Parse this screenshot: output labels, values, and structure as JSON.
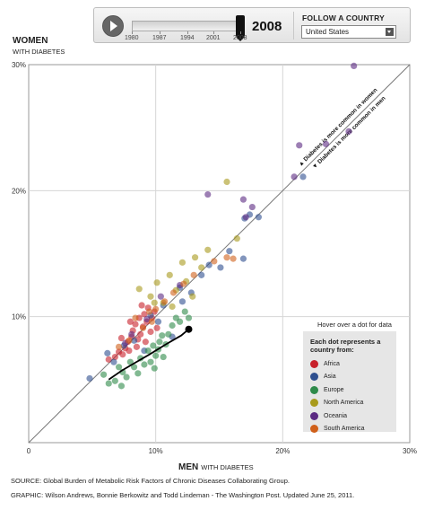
{
  "controls": {
    "play_label": "play",
    "years": [
      "1980",
      "1987",
      "1994",
      "2001",
      "2008"
    ],
    "current_year": "2008",
    "follow_label": "FOLLOW A COUNTRY",
    "selected_country": "United States"
  },
  "axes": {
    "y_title": "WOMEN",
    "y_subtitle": "WITH DIABETES",
    "x_title": "MEN",
    "x_subtitle": "WITH DIABETES"
  },
  "hover_hint": "Hover over a dot for data",
  "legend": {
    "title": "Each dot represents a country from:",
    "items": [
      {
        "label": "Africa",
        "color": "#c8202a"
      },
      {
        "label": "Asia",
        "color": "#2e4f8f"
      },
      {
        "label": "Europe",
        "color": "#2e8a4a"
      },
      {
        "label": "North America",
        "color": "#a89a1c"
      },
      {
        "label": "Oceania",
        "color": "#5b2a82"
      },
      {
        "label": "South America",
        "color": "#d0601a"
      }
    ]
  },
  "chart_data": {
    "type": "scatter",
    "title": "",
    "xlabel": "MEN WITH DIABETES",
    "ylabel": "WOMEN WITH DIABETES",
    "xlim": [
      0,
      30
    ],
    "ylim": [
      0,
      30
    ],
    "x_ticks": [
      "0",
      "10%",
      "20%",
      "30%"
    ],
    "y_ticks": [
      "10%",
      "20%",
      "30%"
    ],
    "grid": true,
    "reference_line": "y = x",
    "diagonal_labels": [
      "▲ Diabetes is more common in women",
      "▼ Diabetes is more common in men"
    ],
    "highlighted_country": {
      "name": "United States",
      "trajectory": [
        [
          6.3,
          5.0
        ],
        [
          7.3,
          5.7
        ],
        [
          8.3,
          6.3
        ],
        [
          9.5,
          7.0
        ],
        [
          10.8,
          7.8
        ],
        [
          12.0,
          8.5
        ],
        [
          12.6,
          9.0
        ]
      ]
    },
    "series": [
      {
        "name": "Africa",
        "color": "#c8202a",
        "points": [
          [
            6.3,
            6.6
          ],
          [
            6.8,
            6.8
          ],
          [
            7.1,
            7.2
          ],
          [
            7.4,
            7.0
          ],
          [
            7.6,
            7.5
          ],
          [
            7.8,
            8.0
          ],
          [
            7.9,
            7.3
          ],
          [
            8.1,
            8.4
          ],
          [
            8.2,
            8.9
          ],
          [
            8.4,
            9.4
          ],
          [
            8.5,
            7.6
          ],
          [
            8.6,
            8.2
          ],
          [
            8.7,
            9.9
          ],
          [
            8.8,
            8.6
          ],
          [
            9.0,
            9.2
          ],
          [
            9.1,
            10.2
          ],
          [
            9.2,
            8.0
          ],
          [
            9.3,
            9.6
          ],
          [
            9.4,
            10.7
          ],
          [
            9.6,
            8.8
          ],
          [
            9.7,
            9.9
          ],
          [
            9.9,
            10.4
          ],
          [
            10.1,
            9.1
          ],
          [
            8.0,
            9.6
          ],
          [
            7.3,
            8.3
          ],
          [
            8.9,
            10.9
          ]
        ]
      },
      {
        "name": "Asia",
        "color": "#2e4f8f",
        "points": [
          [
            4.8,
            5.1
          ],
          [
            6.2,
            7.1
          ],
          [
            7.5,
            7.7
          ],
          [
            8.3,
            8.1
          ],
          [
            9.1,
            7.3
          ],
          [
            10.2,
            9.6
          ],
          [
            11.3,
            8.4
          ],
          [
            12.1,
            11.2
          ],
          [
            12.8,
            11.9
          ],
          [
            13.6,
            13.3
          ],
          [
            14.2,
            14.1
          ],
          [
            15.1,
            13.9
          ],
          [
            15.8,
            15.2
          ],
          [
            16.9,
            14.6
          ],
          [
            17.4,
            18.1
          ],
          [
            17.0,
            17.8
          ],
          [
            18.1,
            17.9
          ],
          [
            21.6,
            21.1
          ],
          [
            10.6,
            10.9
          ],
          [
            11.9,
            12.3
          ],
          [
            6.7,
            6.4
          ],
          [
            9.6,
            10.1
          ]
        ]
      },
      {
        "name": "Europe",
        "color": "#2e8a4a",
        "points": [
          [
            5.9,
            5.4
          ],
          [
            6.3,
            4.7
          ],
          [
            6.8,
            4.9
          ],
          [
            7.1,
            6.0
          ],
          [
            7.4,
            5.6
          ],
          [
            7.7,
            5.2
          ],
          [
            8.0,
            6.4
          ],
          [
            8.3,
            6.0
          ],
          [
            8.6,
            5.5
          ],
          [
            8.8,
            6.7
          ],
          [
            9.1,
            6.2
          ],
          [
            9.4,
            7.3
          ],
          [
            9.6,
            6.4
          ],
          [
            9.8,
            7.7
          ],
          [
            10.0,
            6.9
          ],
          [
            10.2,
            7.4
          ],
          [
            10.3,
            8.0
          ],
          [
            10.5,
            8.5
          ],
          [
            10.8,
            7.8
          ],
          [
            11.0,
            8.6
          ],
          [
            11.3,
            9.3
          ],
          [
            11.6,
            9.9
          ],
          [
            11.9,
            9.6
          ],
          [
            12.3,
            10.4
          ],
          [
            12.6,
            9.9
          ],
          [
            9.9,
            5.9
          ],
          [
            10.6,
            6.8
          ],
          [
            7.3,
            4.5
          ]
        ]
      },
      {
        "name": "North America",
        "color": "#a89a1c",
        "points": [
          [
            8.7,
            12.2
          ],
          [
            9.6,
            11.6
          ],
          [
            10.1,
            12.7
          ],
          [
            10.6,
            11.1
          ],
          [
            11.1,
            13.3
          ],
          [
            11.6,
            12.1
          ],
          [
            12.1,
            14.3
          ],
          [
            12.4,
            12.8
          ],
          [
            13.1,
            14.7
          ],
          [
            13.6,
            13.9
          ],
          [
            14.1,
            15.3
          ],
          [
            15.6,
            20.7
          ],
          [
            16.4,
            16.2
          ],
          [
            9.9,
            11.1
          ],
          [
            11.3,
            10.8
          ],
          [
            12.9,
            11.6
          ]
        ]
      },
      {
        "name": "Oceania",
        "color": "#5b2a82",
        "points": [
          [
            7.6,
            7.9
          ],
          [
            8.1,
            8.6
          ],
          [
            9.3,
            9.8
          ],
          [
            10.4,
            11.6
          ],
          [
            11.9,
            12.5
          ],
          [
            14.1,
            19.7
          ],
          [
            16.9,
            19.3
          ],
          [
            17.6,
            18.7
          ],
          [
            17.1,
            17.9
          ],
          [
            21.3,
            23.6
          ],
          [
            23.4,
            23.7
          ],
          [
            25.2,
            24.7
          ],
          [
            25.6,
            29.9
          ],
          [
            20.9,
            21.1
          ]
        ]
      },
      {
        "name": "South America",
        "color": "#d0601a",
        "points": [
          [
            7.1,
            7.6
          ],
          [
            7.9,
            8.1
          ],
          [
            8.4,
            9.9
          ],
          [
            9.0,
            9.1
          ],
          [
            9.5,
            10.4
          ],
          [
            10.0,
            10.6
          ],
          [
            10.7,
            11.2
          ],
          [
            11.4,
            11.9
          ],
          [
            12.2,
            12.6
          ],
          [
            13.0,
            13.3
          ],
          [
            14.6,
            14.4
          ],
          [
            15.6,
            14.7
          ],
          [
            16.1,
            14.6
          ],
          [
            9.7,
            9.6
          ]
        ]
      }
    ]
  },
  "footer": {
    "source": "SOURCE: Global Burden of Metabolic Risk Factors of Chronic Diseases Collaborating Group.",
    "credit": "GRAPHIC: Wilson Andrews, Bonnie Berkowitz and Todd Lindeman - The Washington Post. Updated June 25, 2011."
  }
}
